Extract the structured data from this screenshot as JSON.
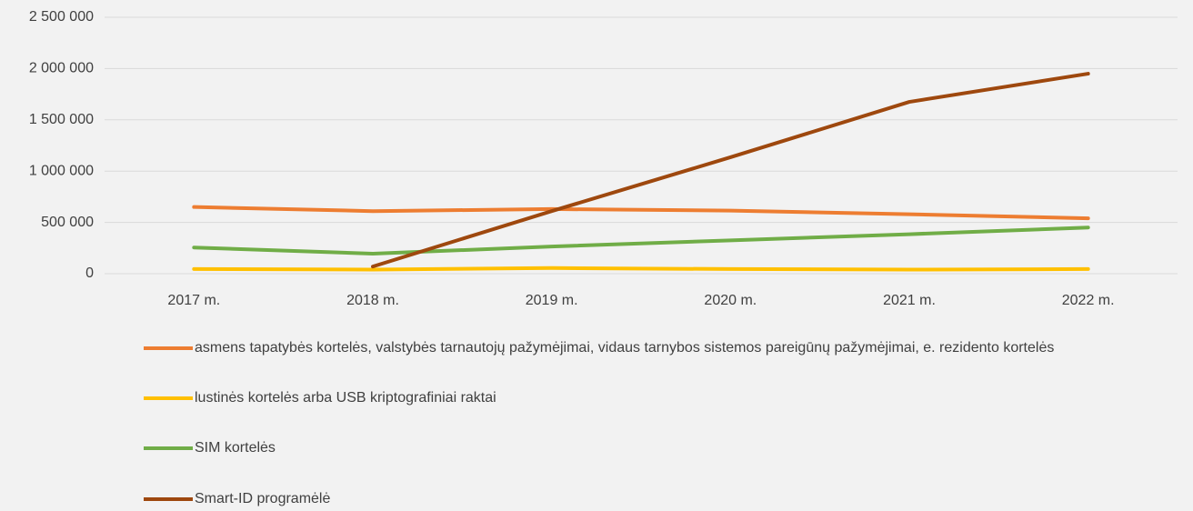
{
  "chart_data": {
    "type": "line",
    "categories": [
      "2017 m.",
      "2018 m.",
      "2019 m.",
      "2020 m.",
      "2021 m.",
      "2022 m."
    ],
    "series": [
      {
        "name": "asmens tapatybės kortelės, valstybės tarnautojų pažymėjimai, vidaus tarnybos sistemos pareigūnų pažymėjimai, e. rezidento kortelės",
        "color": "#ed7d31",
        "values": [
          650000,
          610000,
          630000,
          615000,
          580000,
          540000
        ]
      },
      {
        "name": "lustinės  kortelės arba USB kriptografiniai raktai",
        "color": "#ffc000",
        "values": [
          45000,
          40000,
          55000,
          45000,
          40000,
          45000
        ]
      },
      {
        "name": "SIM kortelės",
        "color": "#70ad47",
        "values": [
          255000,
          195000,
          265000,
          325000,
          385000,
          450000
        ]
      },
      {
        "name": "Smart-ID programėlė",
        "color": "#9e480e",
        "values": [
          null,
          70000,
          610000,
          1135000,
          1675000,
          1950000
        ]
      }
    ],
    "ylim": [
      0,
      2500000
    ],
    "yticks": [
      0,
      {
        "value": 500000,
        "label": "500 000"
      },
      {
        "value": 1000000,
        "label": "1 000 000"
      },
      {
        "value": 1500000,
        "label": "1 500 000"
      },
      {
        "value": 2000000,
        "label": "2 000 000"
      },
      {
        "value": 2500000,
        "label": "2 500 000"
      }
    ],
    "grid": true,
    "legend": "bottom"
  }
}
